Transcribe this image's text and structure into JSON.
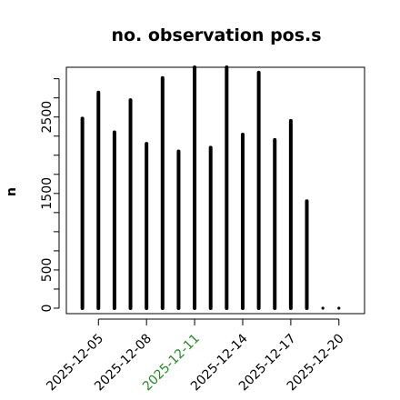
{
  "chart_data": {
    "type": "bar",
    "title": "no. observation pos.s",
    "xlabel": "",
    "ylabel": "n",
    "x_tick_labels": [
      {
        "label": "2025-12-05",
        "x": 5,
        "color": "#000000"
      },
      {
        "label": "2025-12-08",
        "x": 8,
        "color": "#000000"
      },
      {
        "label": "2025-12-11",
        "x": 11,
        "color": "#228B22"
      },
      {
        "label": "2025-12-14",
        "x": 14,
        "color": "#000000"
      },
      {
        "label": "2025-12-17",
        "x": 17,
        "color": "#000000"
      },
      {
        "label": "2025-12-20",
        "x": 20,
        "color": "#000000"
      }
    ],
    "y_ticks": [
      0,
      500,
      1500,
      2500
    ],
    "ylim": [
      0,
      3150
    ],
    "xlim": [
      3.0,
      21.6
    ],
    "x": [
      4,
      5,
      6,
      7,
      8,
      9,
      10,
      11,
      12,
      13,
      14,
      15,
      16,
      17,
      18,
      19,
      20
    ],
    "values": [
      2480,
      2820,
      2300,
      2720,
      2150,
      3010,
      2050,
      3150,
      2100,
      3150,
      2270,
      3080,
      2200,
      2450,
      1400,
      0,
      0
    ],
    "bar_color": "#000000",
    "grid": false,
    "legend": "none"
  }
}
